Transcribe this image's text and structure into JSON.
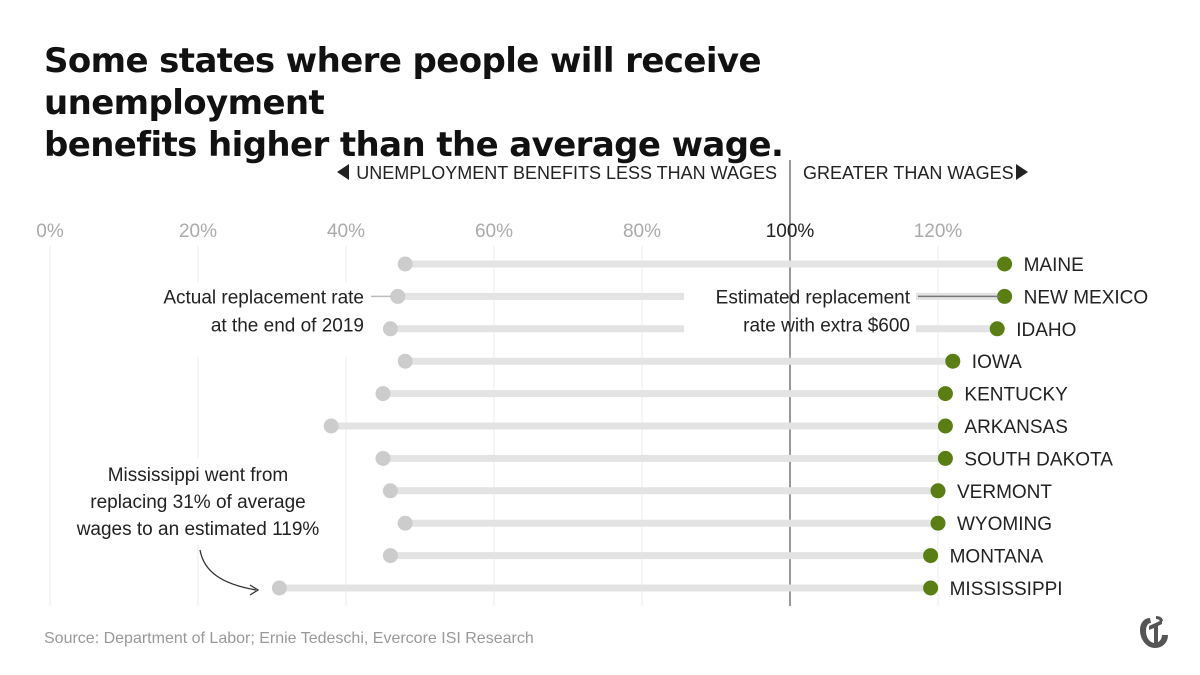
{
  "title_lines": [
    "Some states where people will receive unemployment",
    "benefits higher than the average wage."
  ],
  "header": {
    "left_label": "UNEMPLOYMENT BENEFITS LESS THAN WAGES",
    "right_label": "GREATER THAN WAGES"
  },
  "annotations": {
    "actual_lines": [
      "Actual replacement rate",
      "at the end of 2019"
    ],
    "estimated_lines": [
      "Estimated replacement",
      "rate with extra $600"
    ],
    "mississippi_lines": [
      "Mississippi went from",
      "replacing 31% of average",
      "wages to an estimated 119%"
    ]
  },
  "source": "Source: Department of Labor; Ernie Tedeschi, Evercore ISI Research",
  "colors": {
    "actual": "#cccccc",
    "estimated": "#5a7d14",
    "line": "#e3e3e3",
    "grid": "#eeeeee",
    "ref": "#333333"
  },
  "chart_data": {
    "type": "dumbbell",
    "title": "Some states where people will receive unemployment benefits higher than the average wage.",
    "xlim": [
      0,
      130
    ],
    "x_ticks": [
      0,
      20,
      40,
      60,
      80,
      100,
      120
    ],
    "x_tick_labels": [
      "0%",
      "20%",
      "40%",
      "60%",
      "80%",
      "100%",
      "120%"
    ],
    "reference_line": 100,
    "series": [
      {
        "name": "Actual replacement rate at the end of 2019",
        "key": "actual"
      },
      {
        "name": "Estimated replacement rate with extra $600",
        "key": "estimated"
      }
    ],
    "states": [
      {
        "name": "MAINE",
        "actual": 48,
        "estimated": 129
      },
      {
        "name": "NEW MEXICO",
        "actual": 47,
        "estimated": 129
      },
      {
        "name": "IDAHO",
        "actual": 46,
        "estimated": 128
      },
      {
        "name": "IOWA",
        "actual": 48,
        "estimated": 122
      },
      {
        "name": "KENTUCKY",
        "actual": 45,
        "estimated": 121
      },
      {
        "name": "ARKANSAS",
        "actual": 38,
        "estimated": 121
      },
      {
        "name": "SOUTH DAKOTA",
        "actual": 45,
        "estimated": 121
      },
      {
        "name": "VERMONT",
        "actual": 46,
        "estimated": 120
      },
      {
        "name": "WYOMING",
        "actual": 48,
        "estimated": 120
      },
      {
        "name": "MONTANA",
        "actual": 46,
        "estimated": 119
      },
      {
        "name": "MISSISSIPPI",
        "actual": 31,
        "estimated": 119
      }
    ]
  }
}
